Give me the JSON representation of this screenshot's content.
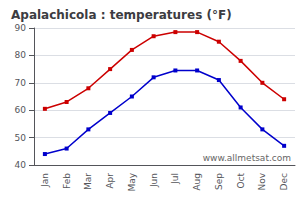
{
  "chart_data": {
    "type": "line",
    "title": "Apalachicola : temperatures (°F)",
    "categories": [
      "Jan",
      "Feb",
      "Mar",
      "Apr",
      "May",
      "Jun",
      "Jul",
      "Aug",
      "Sep",
      "Oct",
      "Nov",
      "Dec"
    ],
    "series": [
      {
        "color": "#cc0000",
        "values": [
          60.5,
          63,
          68,
          75,
          82,
          87,
          88.5,
          88.5,
          85,
          78,
          70,
          64
        ]
      },
      {
        "color": "#0000cc",
        "values": [
          44,
          46,
          53,
          59,
          65,
          72,
          74.5,
          74.5,
          71,
          61,
          53,
          47
        ]
      }
    ],
    "ylim": [
      40,
      90
    ],
    "yticks": [
      40,
      50,
      60,
      70,
      80,
      90
    ],
    "grid": true,
    "marker": "square",
    "annotations": [
      "www.allmetsat.com"
    ]
  }
}
